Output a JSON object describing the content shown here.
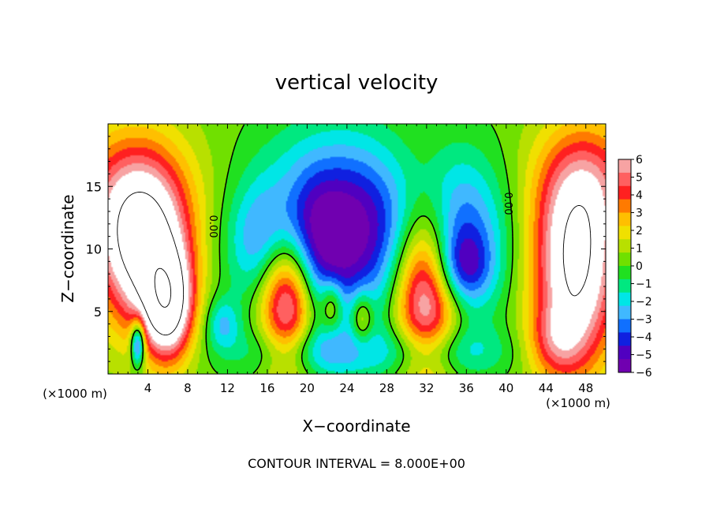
{
  "chart_data": {
    "type": "heatmap",
    "title": "vertical velocity",
    "xlabel": "X−coordinate",
    "ylabel": "Z−coordinate",
    "x_unit_left": "(×1000 m)",
    "x_unit_right": "(×1000 m)",
    "footer": "CONTOUR INTERVAL = 8.000E+00",
    "xlim": [
      0,
      50
    ],
    "ylim": [
      0,
      20
    ],
    "x_ticks": [
      4,
      8,
      12,
      16,
      20,
      24,
      28,
      32,
      36,
      40,
      44,
      48
    ],
    "x_tick_labels": [
      "4",
      "8",
      "12",
      "16",
      "20",
      "24",
      "28",
      "32",
      "36",
      "40",
      "44",
      "48"
    ],
    "y_ticks": [
      5,
      10,
      15
    ],
    "y_tick_labels": [
      "5",
      "10",
      "15"
    ],
    "colorbar": {
      "min": -6,
      "max": 6,
      "tick_labels": [
        "6",
        "5",
        "4",
        "3",
        "2",
        "1",
        "0",
        "−1",
        "−2",
        "−3",
        "−4",
        "−5",
        "−6"
      ],
      "colors": [
        "#f7a3a3",
        "#ff6060",
        "#ff2020",
        "#ff7a00",
        "#ffbf00",
        "#f0e000",
        "#b8e000",
        "#70e000",
        "#20e020",
        "#00e880",
        "#00e6e6",
        "#40b8ff",
        "#1070ff",
        "#1020e0",
        "#5000c0",
        "#7000b0"
      ]
    },
    "contour_labels": [
      "0.00",
      "0.00"
    ],
    "field": {
      "background": 0.3,
      "blobs": [
        {
          "x": 3.5,
          "z": 10.0,
          "sx": 3.2,
          "sz": 4.5,
          "amp": 8.0
        },
        {
          "x": 6.0,
          "z": 5.5,
          "sx": 1.7,
          "sz": 3.0,
          "amp": 8.0
        },
        {
          "x": 2.0,
          "z": 14.5,
          "sx": 4.5,
          "sz": 4.0,
          "amp": 3.0
        },
        {
          "x": 47.0,
          "z": 8.5,
          "sx": 3.0,
          "sz": 5.5,
          "amp": 8.0
        },
        {
          "x": 48.5,
          "z": 15.5,
          "sx": 4.0,
          "sz": 3.5,
          "amp": 3.0
        },
        {
          "x": 45.0,
          "z": 2.5,
          "sx": 2.0,
          "sz": 2.0,
          "amp": 2.5
        },
        {
          "x": 18.0,
          "z": 7.0,
          "sx": 2.0,
          "sz": 4.5,
          "amp": 9.0
        },
        {
          "x": 32.0,
          "z": 7.5,
          "sx": 2.3,
          "sz": 5.0,
          "amp": 9.0
        },
        {
          "x": 22.5,
          "z": 5.5,
          "sx": 0.8,
          "sz": 1.5,
          "amp": 3.0
        },
        {
          "x": 25.5,
          "z": 4.5,
          "sx": 0.8,
          "sz": 1.5,
          "amp": 3.0
        },
        {
          "x": 20.0,
          "z": 11.0,
          "sx": 4.0,
          "sz": 5.0,
          "amp": -6.0
        },
        {
          "x": 17.0,
          "z": 10.5,
          "sx": 3.0,
          "sz": 3.0,
          "amp": -3.0
        },
        {
          "x": 33.5,
          "z": 11.0,
          "sx": 4.0,
          "sz": 4.5,
          "amp": -6.0
        },
        {
          "x": 35.5,
          "z": 8.5,
          "sx": 2.0,
          "sz": 2.0,
          "amp": -3.0
        },
        {
          "x": 25.5,
          "z": 12.0,
          "sx": 3.0,
          "sz": 5.0,
          "amp": -3.0
        },
        {
          "x": 20.0,
          "z": 1.8,
          "sx": 5.0,
          "sz": 1.5,
          "amp": -2.5
        },
        {
          "x": 33.0,
          "z": 1.8,
          "sx": 5.0,
          "sz": 1.5,
          "amp": -2.5
        },
        {
          "x": 3.0,
          "z": 2.5,
          "sx": 0.5,
          "sz": 1.3,
          "amp": -6.0
        },
        {
          "x": 11.5,
          "z": 4.0,
          "sx": 1.2,
          "sz": 1.5,
          "amp": -2.5
        }
      ]
    }
  }
}
